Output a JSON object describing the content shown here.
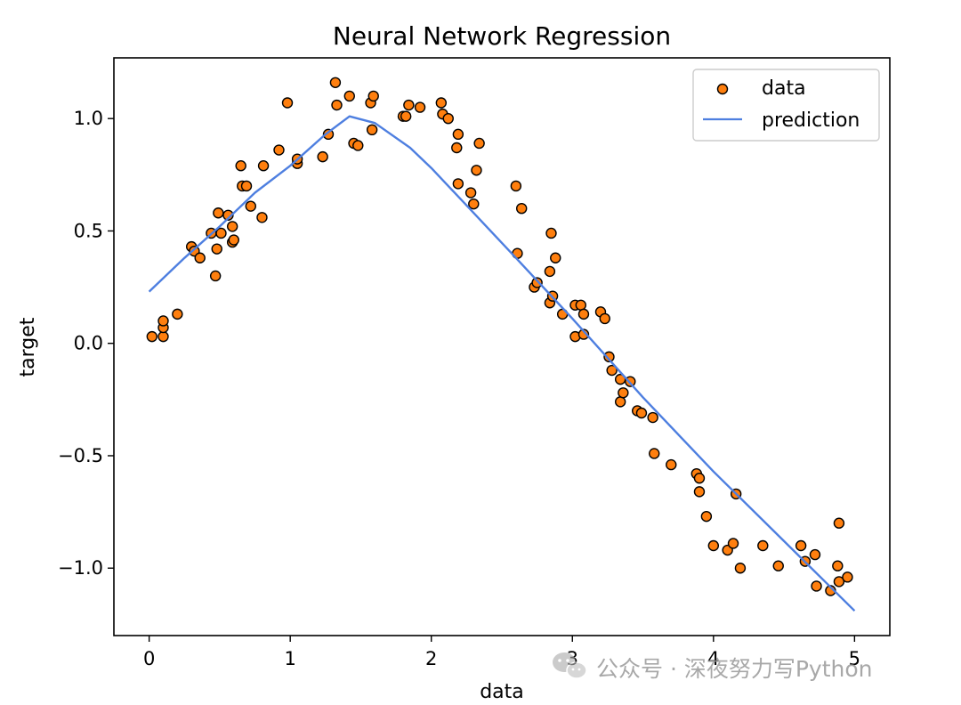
{
  "chart_data": {
    "type": "scatter",
    "title": "Neural Network Regression",
    "xlabel": "data",
    "ylabel": "target",
    "xlim": [
      -0.25,
      5.25
    ],
    "ylim": [
      -1.3,
      1.27
    ],
    "xticks": [
      0,
      1,
      2,
      3,
      4,
      5
    ],
    "xtick_labels": [
      "0",
      "1",
      "2",
      "3",
      "4",
      "5"
    ],
    "yticks": [
      -1.0,
      -0.5,
      0.0,
      0.5,
      1.0
    ],
    "ytick_labels": [
      "−1.0",
      "−0.5",
      "0.0",
      "0.5",
      "1.0"
    ],
    "legend": {
      "position": "top-right",
      "entries": [
        {
          "label": "data",
          "marker": "circle",
          "color": "#ff7f0e"
        },
        {
          "label": "prediction",
          "marker": "line",
          "color": "#4e7fe0"
        }
      ]
    },
    "series": [
      {
        "name": "data",
        "kind": "scatter",
        "color": "#ff7f0e",
        "edge_color": "#000000",
        "points": [
          [
            0.02,
            0.03
          ],
          [
            0.1,
            0.03
          ],
          [
            0.1,
            0.07
          ],
          [
            0.1,
            0.1
          ],
          [
            0.2,
            0.13
          ],
          [
            0.3,
            0.43
          ],
          [
            0.32,
            0.41
          ],
          [
            0.36,
            0.38
          ],
          [
            0.44,
            0.49
          ],
          [
            0.47,
            0.3
          ],
          [
            0.48,
            0.42
          ],
          [
            0.49,
            0.58
          ],
          [
            0.51,
            0.49
          ],
          [
            0.56,
            0.57
          ],
          [
            0.59,
            0.45
          ],
          [
            0.59,
            0.52
          ],
          [
            0.6,
            0.46
          ],
          [
            0.65,
            0.79
          ],
          [
            0.66,
            0.7
          ],
          [
            0.69,
            0.7
          ],
          [
            0.72,
            0.61
          ],
          [
            0.8,
            0.56
          ],
          [
            0.81,
            0.79
          ],
          [
            0.92,
            0.86
          ],
          [
            0.98,
            1.07
          ],
          [
            1.05,
            0.8
          ],
          [
            1.05,
            0.82
          ],
          [
            1.23,
            0.83
          ],
          [
            1.27,
            0.93
          ],
          [
            1.32,
            1.16
          ],
          [
            1.33,
            1.06
          ],
          [
            1.42,
            1.1
          ],
          [
            1.45,
            0.89
          ],
          [
            1.48,
            0.88
          ],
          [
            1.57,
            1.07
          ],
          [
            1.58,
            0.95
          ],
          [
            1.59,
            1.1
          ],
          [
            1.8,
            1.01
          ],
          [
            1.82,
            1.01
          ],
          [
            1.84,
            1.06
          ],
          [
            1.92,
            1.05
          ],
          [
            2.07,
            1.07
          ],
          [
            2.08,
            1.02
          ],
          [
            2.12,
            1.0
          ],
          [
            2.18,
            0.87
          ],
          [
            2.19,
            0.71
          ],
          [
            2.19,
            0.93
          ],
          [
            2.28,
            0.67
          ],
          [
            2.3,
            0.62
          ],
          [
            2.32,
            0.77
          ],
          [
            2.34,
            0.89
          ],
          [
            2.6,
            0.7
          ],
          [
            2.61,
            0.4
          ],
          [
            2.64,
            0.6
          ],
          [
            2.73,
            0.25
          ],
          [
            2.75,
            0.27
          ],
          [
            2.84,
            0.18
          ],
          [
            2.84,
            0.32
          ],
          [
            2.85,
            0.49
          ],
          [
            2.86,
            0.21
          ],
          [
            2.88,
            0.38
          ],
          [
            2.93,
            0.13
          ],
          [
            3.02,
            0.03
          ],
          [
            3.02,
            0.17
          ],
          [
            3.06,
            0.17
          ],
          [
            3.08,
            0.04
          ],
          [
            3.08,
            0.13
          ],
          [
            3.2,
            0.14
          ],
          [
            3.23,
            0.11
          ],
          [
            3.26,
            -0.06
          ],
          [
            3.28,
            -0.12
          ],
          [
            3.34,
            -0.16
          ],
          [
            3.34,
            -0.26
          ],
          [
            3.36,
            -0.22
          ],
          [
            3.41,
            -0.17
          ],
          [
            3.46,
            -0.3
          ],
          [
            3.49,
            -0.31
          ],
          [
            3.57,
            -0.33
          ],
          [
            3.58,
            -0.49
          ],
          [
            3.7,
            -0.54
          ],
          [
            3.88,
            -0.58
          ],
          [
            3.9,
            -0.66
          ],
          [
            3.9,
            -0.6
          ],
          [
            3.95,
            -0.77
          ],
          [
            4.0,
            -0.9
          ],
          [
            4.1,
            -0.92
          ],
          [
            4.14,
            -0.89
          ],
          [
            4.16,
            -0.67
          ],
          [
            4.19,
            -1.0
          ],
          [
            4.35,
            -0.9
          ],
          [
            4.46,
            -0.99
          ],
          [
            4.62,
            -0.9
          ],
          [
            4.65,
            -0.97
          ],
          [
            4.72,
            -0.94
          ],
          [
            4.73,
            -1.08
          ],
          [
            4.83,
            -1.1
          ],
          [
            4.88,
            -0.99
          ],
          [
            4.89,
            -1.06
          ],
          [
            4.89,
            -0.8
          ],
          [
            4.95,
            -1.04
          ]
        ]
      },
      {
        "name": "prediction",
        "kind": "line",
        "color": "#4e7fe0",
        "points": [
          [
            0.0,
            0.23
          ],
          [
            0.25,
            0.38
          ],
          [
            0.5,
            0.52
          ],
          [
            0.75,
            0.67
          ],
          [
            1.0,
            0.79
          ],
          [
            1.25,
            0.93
          ],
          [
            1.42,
            1.01
          ],
          [
            1.6,
            0.98
          ],
          [
            1.85,
            0.87
          ],
          [
            2.0,
            0.78
          ],
          [
            2.3,
            0.58
          ],
          [
            2.6,
            0.38
          ],
          [
            3.0,
            0.11
          ],
          [
            3.5,
            -0.24
          ],
          [
            4.0,
            -0.57
          ],
          [
            4.5,
            -0.88
          ],
          [
            5.0,
            -1.19
          ]
        ]
      }
    ]
  },
  "watermark": {
    "icon": "wechat-icon",
    "text": "公众号 · 深夜努力写Python"
  }
}
